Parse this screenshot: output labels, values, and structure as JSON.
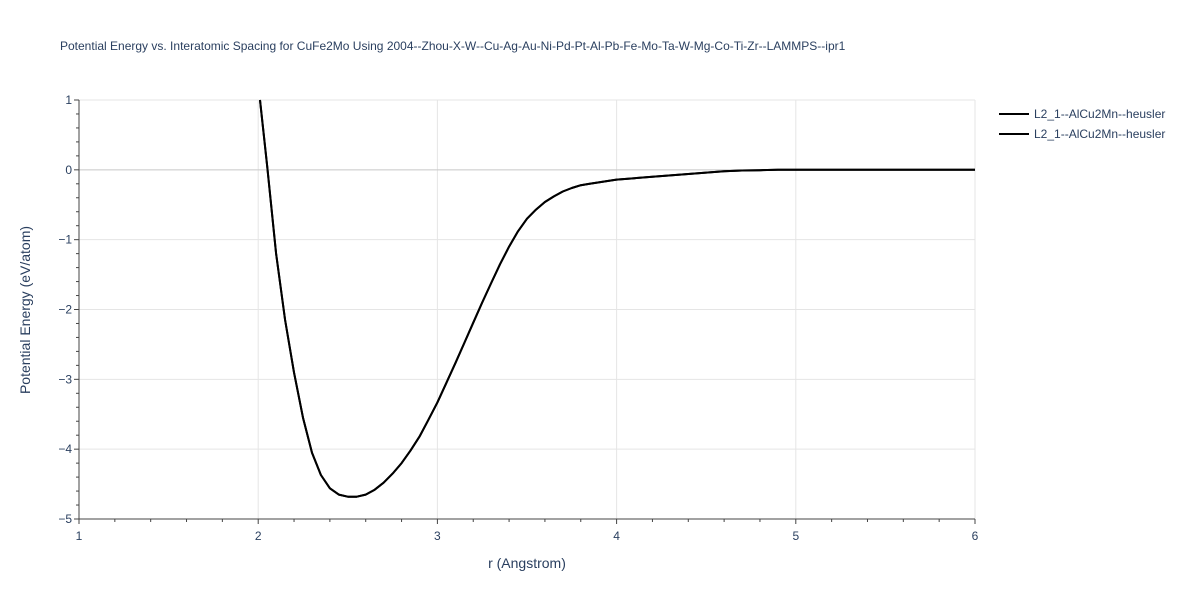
{
  "chart_data": {
    "type": "line",
    "title": "Potential Energy vs. Interatomic Spacing for CuFe2Mo Using 2004--Zhou-X-W--Cu-Ag-Au-Ni-Pd-Pt-Al-Pb-Fe-Mo-Ta-W-Mg-Co-Ti-Zr--LAMMPS--ipr1",
    "xlabel": "r (Angstrom)",
    "ylabel": "Potential Energy (eV/atom)",
    "xlim": [
      1,
      6
    ],
    "ylim": [
      -5,
      1
    ],
    "xticks": [
      1,
      2,
      3,
      4,
      5,
      6
    ],
    "yticks": [
      1,
      0,
      -1,
      -2,
      -3,
      -4,
      -5
    ],
    "xtick_labels": [
      "1",
      "2",
      "3",
      "4",
      "5",
      "6"
    ],
    "ytick_labels": [
      "1",
      "0",
      "−1",
      "−2",
      "−3",
      "−4",
      "−5"
    ],
    "grid": true,
    "legend_position": "top-right",
    "series": [
      {
        "name": "L2_1--AlCu2Mn--heusler",
        "color": "#000000",
        "x": [
          2.01,
          2.05,
          2.1,
          2.15,
          2.2,
          2.25,
          2.3,
          2.35,
          2.4,
          2.45,
          2.5,
          2.55,
          2.6,
          2.65,
          2.7,
          2.75,
          2.8,
          2.85,
          2.9,
          2.95,
          3.0,
          3.05,
          3.1,
          3.15,
          3.2,
          3.25,
          3.3,
          3.35,
          3.4,
          3.45,
          3.5,
          3.55,
          3.6,
          3.65,
          3.7,
          3.75,
          3.8,
          3.85,
          3.9,
          3.95,
          4.0,
          4.1,
          4.2,
          4.3,
          4.4,
          4.5,
          4.6,
          4.7,
          4.8,
          4.9,
          5.0,
          5.2,
          5.4,
          5.6,
          5.8,
          6.0
        ],
        "y": [
          1.0,
          0.05,
          -1.2,
          -2.15,
          -2.9,
          -3.55,
          -4.05,
          -4.37,
          -4.56,
          -4.65,
          -4.68,
          -4.68,
          -4.65,
          -4.58,
          -4.48,
          -4.35,
          -4.2,
          -4.02,
          -3.82,
          -3.58,
          -3.33,
          -3.05,
          -2.77,
          -2.48,
          -2.19,
          -1.9,
          -1.62,
          -1.35,
          -1.1,
          -0.88,
          -0.7,
          -0.57,
          -0.46,
          -0.38,
          -0.31,
          -0.26,
          -0.22,
          -0.2,
          -0.18,
          -0.16,
          -0.14,
          -0.12,
          -0.1,
          -0.08,
          -0.06,
          -0.04,
          -0.02,
          -0.01,
          -0.005,
          0.0,
          0.0,
          0.0,
          0.0,
          0.0,
          0.0,
          0.0
        ]
      },
      {
        "name": "L2_1--AlCu2Mn--heusler",
        "color": "#000000",
        "x": [
          2.01,
          2.05,
          2.1,
          2.15,
          2.2,
          2.25,
          2.3,
          2.35,
          2.4,
          2.45,
          2.5,
          2.55,
          2.6,
          2.65,
          2.7,
          2.75,
          2.8,
          2.85,
          2.9,
          2.95,
          3.0,
          3.05,
          3.1,
          3.15,
          3.2,
          3.25,
          3.3,
          3.35,
          3.4,
          3.45,
          3.5,
          3.55,
          3.6,
          3.65,
          3.7,
          3.75,
          3.8,
          3.85,
          3.9,
          3.95,
          4.0,
          4.1,
          4.2,
          4.3,
          4.4,
          4.5,
          4.6,
          4.7,
          4.8,
          4.9,
          5.0,
          5.2,
          5.4,
          5.6,
          5.8,
          6.0
        ],
        "y": [
          1.0,
          0.05,
          -1.2,
          -2.15,
          -2.9,
          -3.55,
          -4.05,
          -4.37,
          -4.56,
          -4.65,
          -4.68,
          -4.68,
          -4.65,
          -4.58,
          -4.48,
          -4.35,
          -4.2,
          -4.02,
          -3.82,
          -3.58,
          -3.33,
          -3.05,
          -2.77,
          -2.48,
          -2.19,
          -1.9,
          -1.62,
          -1.35,
          -1.1,
          -0.88,
          -0.7,
          -0.57,
          -0.46,
          -0.38,
          -0.31,
          -0.26,
          -0.22,
          -0.2,
          -0.18,
          -0.16,
          -0.14,
          -0.12,
          -0.1,
          -0.08,
          -0.06,
          -0.04,
          -0.02,
          -0.01,
          -0.005,
          0.0,
          0.0,
          0.0,
          0.0,
          0.0,
          0.0,
          0.0
        ]
      }
    ]
  }
}
